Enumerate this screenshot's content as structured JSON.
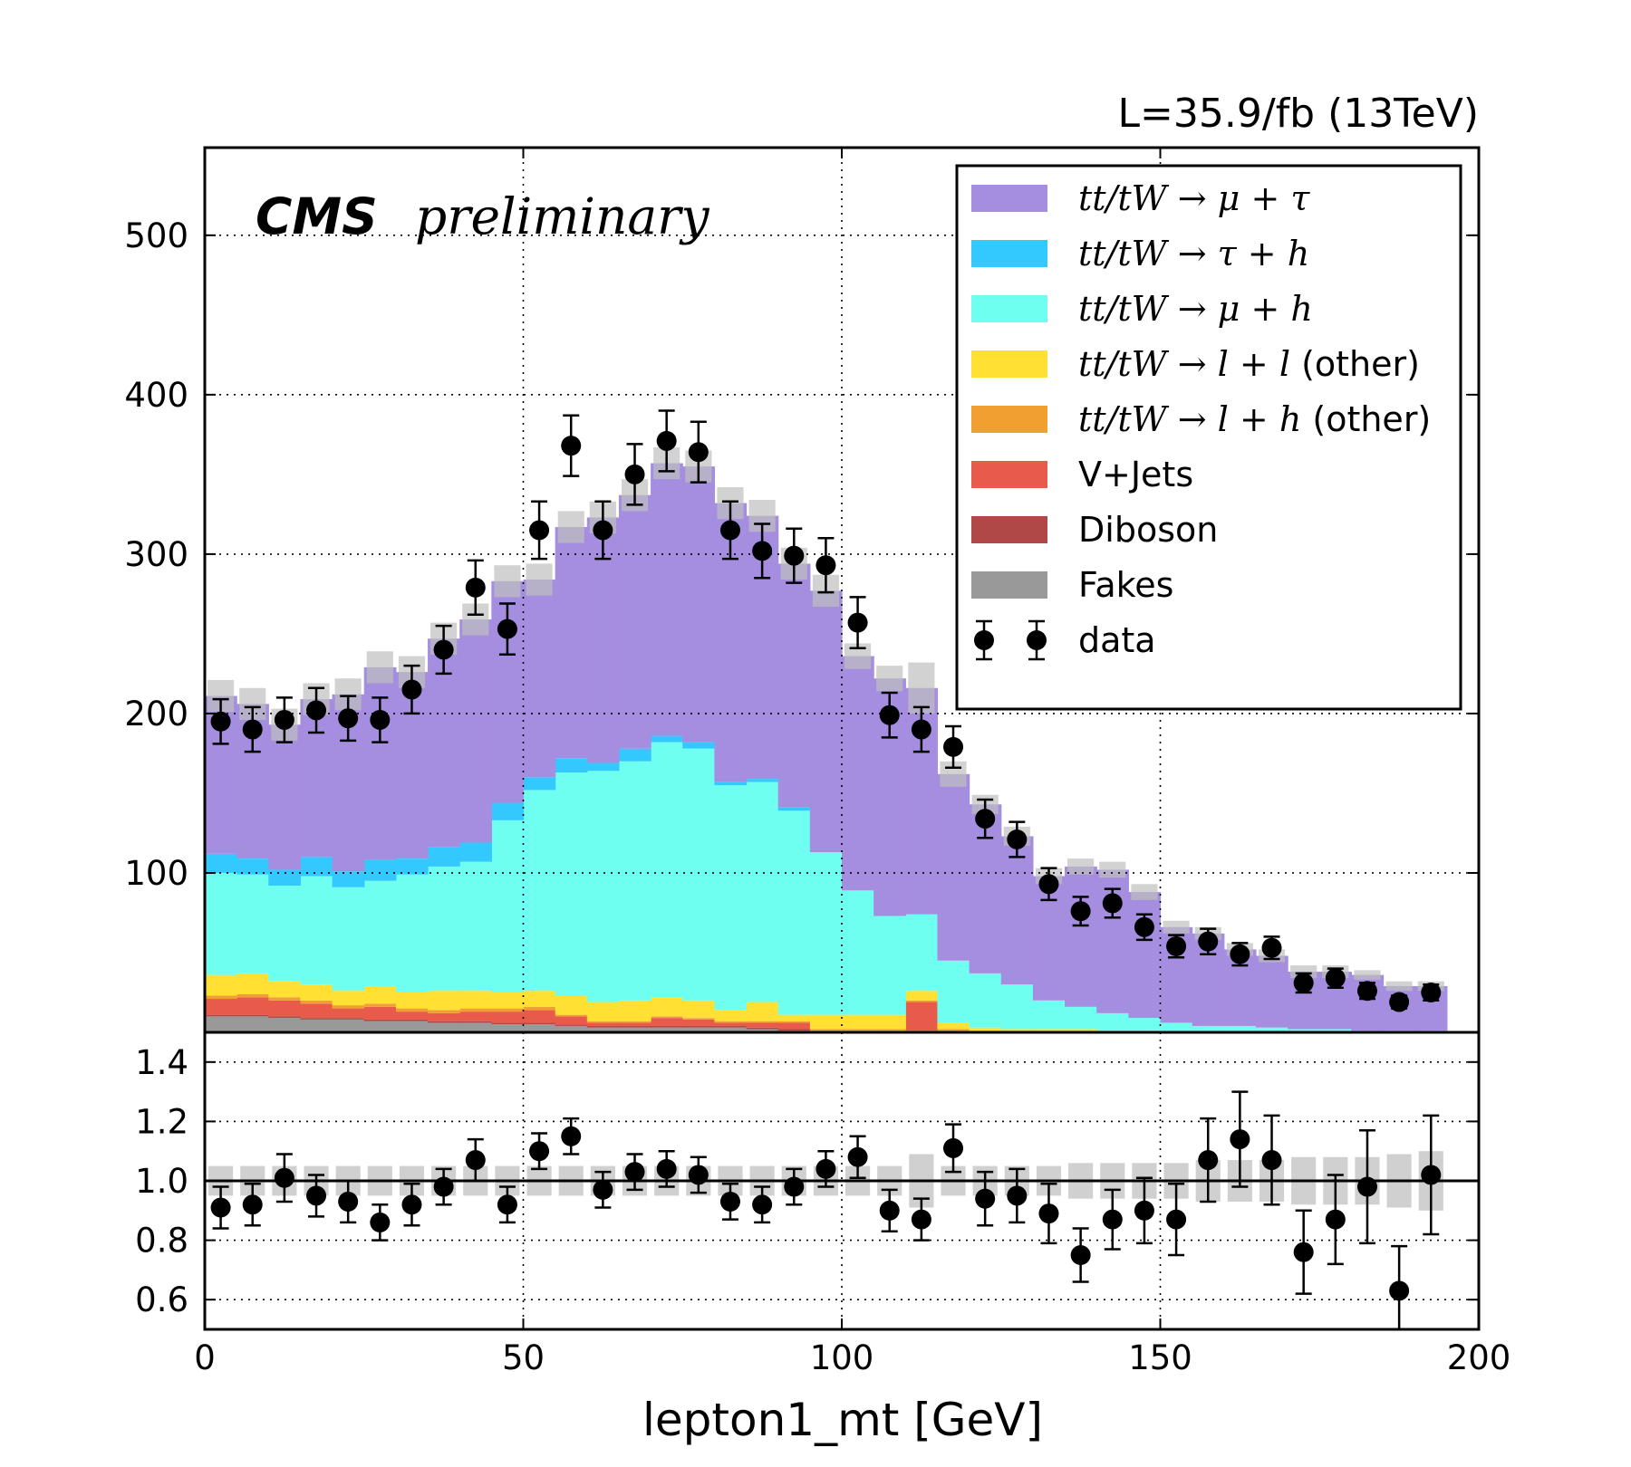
{
  "header": {
    "lumi": "L=35.9/fb (13TeV)",
    "cms_label": "CMS",
    "prelim_label": "preliminary"
  },
  "legend": [
    {
      "label_math": "tt/tW → μ + τ",
      "label_text": "",
      "color": "#a58de0",
      "kind": "box"
    },
    {
      "label_math": "tt/tW → τ + h",
      "label_text": "",
      "color": "#33c9ff",
      "kind": "box"
    },
    {
      "label_math": "tt/tW → μ + h",
      "label_text": "",
      "color": "#6ffff0",
      "kind": "box"
    },
    {
      "label_math": "tt/tW → l + l",
      "label_text": " (other)",
      "color": "#ffe033",
      "kind": "box"
    },
    {
      "label_math": "tt/tW → l + h",
      "label_text": " (other)",
      "color": "#f0a030",
      "kind": "box"
    },
    {
      "label_math": "",
      "label_text": "V+Jets",
      "color": "#e85a4a",
      "kind": "box"
    },
    {
      "label_math": "",
      "label_text": "Diboson",
      "color": "#b04848",
      "kind": "box"
    },
    {
      "label_math": "",
      "label_text": "Fakes",
      "color": "#999999",
      "kind": "box"
    },
    {
      "label_math": "",
      "label_text": "data",
      "color": "#000000",
      "kind": "marker"
    }
  ],
  "chart_data": {
    "type": "bar",
    "stacked": true,
    "xlabel": "lepton1_mt [GeV]",
    "xlim": [
      0,
      200
    ],
    "ylim_main": [
      0,
      555
    ],
    "ylim_ratio": [
      0.5,
      1.5
    ],
    "x_ticks": [
      "0",
      "50",
      "100",
      "150",
      "200"
    ],
    "y_ticks_main": [
      "100",
      "200",
      "300",
      "400",
      "500"
    ],
    "y_ticks_ratio": [
      "0.6",
      "0.8",
      "1.0",
      "1.2",
      "1.4"
    ],
    "grid": true,
    "legend_position": "top-right",
    "bin_edges": [
      0,
      5,
      10,
      15,
      20,
      25,
      30,
      35,
      40,
      45,
      50,
      55,
      60,
      65,
      70,
      75,
      80,
      85,
      90,
      95,
      100,
      105,
      110,
      115,
      120,
      125,
      130,
      135,
      140,
      145,
      150,
      155,
      160,
      165,
      170,
      175,
      180,
      185,
      190,
      195
    ],
    "series": [
      {
        "name": "Fakes",
        "color": "#999999",
        "values": [
          10,
          10,
          9,
          8,
          8,
          7,
          7,
          6,
          6,
          5,
          5,
          4,
          3,
          3,
          3,
          3,
          3,
          2,
          1,
          1,
          1,
          1,
          1,
          1,
          0,
          0,
          0,
          0,
          0,
          0,
          0,
          0,
          0,
          0,
          0,
          0,
          0,
          0,
          0
        ]
      },
      {
        "name": "Diboson",
        "color": "#b04848",
        "values": [
          1,
          1,
          1,
          1,
          1,
          1,
          1,
          1,
          1,
          1,
          1,
          1,
          1,
          1,
          1,
          1,
          1,
          1,
          1,
          0,
          0,
          0,
          0,
          0,
          0,
          0,
          0,
          0,
          0,
          0,
          0,
          0,
          0,
          0,
          0,
          0,
          0,
          0,
          0
        ]
      },
      {
        "name": "V+Jets",
        "color": "#e85a4a",
        "values": [
          10,
          11,
          10,
          9,
          6,
          8,
          5,
          5,
          6,
          7,
          8,
          5,
          2,
          2,
          5,
          4,
          2,
          3,
          4,
          0,
          0,
          0,
          18,
          0,
          0,
          0,
          0,
          0,
          0,
          0,
          0,
          0,
          0,
          0,
          0,
          0,
          0,
          0,
          0
        ]
      },
      {
        "name": "tt/tW → l + h (other)",
        "color": "#f0a030",
        "values": [
          2,
          2,
          2,
          2,
          2,
          2,
          2,
          2,
          2,
          2,
          2,
          1,
          1,
          1,
          1,
          1,
          1,
          1,
          1,
          1,
          1,
          1,
          1,
          1,
          0,
          0,
          0,
          0,
          0,
          0,
          0,
          0,
          0,
          0,
          0,
          0,
          0,
          0,
          0
        ]
      },
      {
        "name": "tt/tW → l + l (other)",
        "color": "#ffe033",
        "values": [
          13,
          13,
          10,
          10,
          9,
          11,
          10,
          12,
          11,
          10,
          10,
          12,
          12,
          13,
          12,
          11,
          7,
          12,
          4,
          9,
          9,
          9,
          6,
          4,
          3,
          2,
          2,
          2,
          1,
          1,
          0,
          0,
          0,
          0,
          0,
          0,
          0,
          0,
          0
        ]
      },
      {
        "name": "tt/tW → μ + h",
        "color": "#6ffff0",
        "values": [
          64,
          62,
          60,
          68,
          65,
          66,
          74,
          78,
          81,
          108,
          126,
          140,
          145,
          150,
          160,
          158,
          141,
          138,
          128,
          102,
          78,
          62,
          48,
          39,
          34,
          28,
          18,
          14,
          11,
          8,
          6,
          4,
          4,
          3,
          2,
          2,
          1,
          1,
          1
        ]
      },
      {
        "name": "tt/tW → τ + h",
        "color": "#33c9ff",
        "values": [
          12,
          10,
          10,
          12,
          10,
          13,
          10,
          12,
          12,
          11,
          8,
          9,
          5,
          8,
          4,
          4,
          2,
          2,
          2,
          0,
          0,
          0,
          0,
          0,
          0,
          0,
          0,
          0,
          0,
          0,
          0,
          0,
          0,
          0,
          0,
          0,
          0,
          0,
          0
        ]
      },
      {
        "name": "tt/tW → μ + τ",
        "color": "#a58de0",
        "values": [
          99,
          97,
          91,
          99,
          111,
          121,
          117,
          131,
          140,
          139,
          124,
          145,
          154,
          159,
          171,
          173,
          175,
          165,
          153,
          164,
          147,
          149,
          142,
          117,
          106,
          93,
          78,
          88,
          90,
          79,
          60,
          58,
          48,
          45,
          36,
          36,
          35,
          28,
          28
        ]
      }
    ],
    "mc_uncertainty": [
      10,
      10,
      10,
      10,
      10,
      10,
      10,
      10,
      10,
      10,
      10,
      10,
      10,
      10,
      10,
      10,
      10,
      10,
      10,
      10,
      8,
      8,
      16,
      8,
      6,
      6,
      5,
      5,
      5,
      5,
      4,
      4,
      4,
      4,
      4,
      4,
      3,
      3,
      3
    ],
    "data": {
      "name": "data",
      "values": [
        195,
        190,
        196,
        202,
        197,
        196,
        215,
        240,
        279,
        253,
        315,
        368,
        315,
        350,
        371,
        364,
        315,
        302,
        299,
        293,
        257,
        199,
        190,
        179,
        134,
        121,
        93,
        76,
        81,
        66,
        54,
        57,
        49,
        53,
        31,
        34,
        26,
        19,
        25
      ],
      "errors": [
        14,
        14,
        14,
        14,
        14,
        14,
        15,
        15,
        17,
        16,
        18,
        19,
        18,
        19,
        19,
        19,
        18,
        17,
        17,
        17,
        16,
        14,
        14,
        13,
        12,
        11,
        10,
        9,
        9,
        8,
        7,
        8,
        7,
        7,
        6,
        6,
        5,
        4,
        5
      ]
    },
    "ratio": {
      "values": [
        0.91,
        0.92,
        1.01,
        0.95,
        0.93,
        0.86,
        0.92,
        0.98,
        1.07,
        0.92,
        1.1,
        1.15,
        0.97,
        1.03,
        1.04,
        1.02,
        0.93,
        0.92,
        0.98,
        1.04,
        1.08,
        0.9,
        0.87,
        1.11,
        0.94,
        0.95,
        0.89,
        0.75,
        0.87,
        0.9,
        0.87,
        1.07,
        1.14,
        1.07,
        0.76,
        0.87,
        0.98,
        0.63,
        1.02
      ],
      "errors": [
        0.07,
        0.07,
        0.08,
        0.07,
        0.07,
        0.06,
        0.07,
        0.06,
        0.07,
        0.06,
        0.06,
        0.06,
        0.06,
        0.06,
        0.06,
        0.06,
        0.06,
        0.06,
        0.06,
        0.06,
        0.07,
        0.07,
        0.07,
        0.08,
        0.09,
        0.09,
        0.1,
        0.09,
        0.1,
        0.11,
        0.12,
        0.14,
        0.16,
        0.15,
        0.14,
        0.15,
        0.19,
        0.15,
        0.2
      ],
      "band": [
        0.05,
        0.05,
        0.05,
        0.05,
        0.05,
        0.05,
        0.05,
        0.05,
        0.05,
        0.05,
        0.05,
        0.05,
        0.05,
        0.05,
        0.05,
        0.05,
        0.05,
        0.05,
        0.05,
        0.05,
        0.05,
        0.05,
        0.09,
        0.05,
        0.05,
        0.05,
        0.05,
        0.06,
        0.06,
        0.06,
        0.06,
        0.07,
        0.07,
        0.07,
        0.08,
        0.08,
        0.08,
        0.09,
        0.1
      ]
    }
  }
}
